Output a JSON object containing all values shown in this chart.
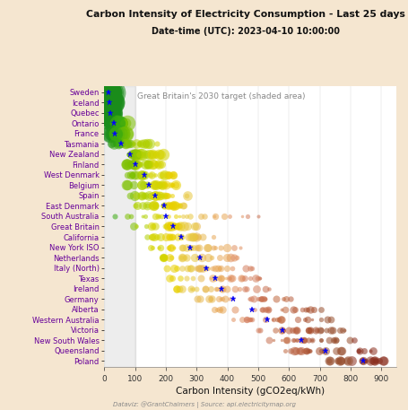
{
  "title": "Carbon Intensity of Electricity Consumption - Last 25 days",
  "subtitle": "Date-time (UTC): 2023-04-10 10:00:00",
  "xlabel": "Carbon Intensity (gCO2eq/kWh)",
  "footer": "Dataviz: @GrantChalmers | Source: api.electricitymap.org",
  "annotation": "Great Britain's 2030 target (shaded area)",
  "background_color": "#f5e6d0",
  "plot_background_color": "#ffffff",
  "countries": [
    "Sweden",
    "Iceland",
    "Quebec",
    "Ontario",
    "France",
    "Tasmania",
    "New Zealand",
    "Finland",
    "West Denmark",
    "Belgium",
    "Spain",
    "East Denmark",
    "South Australia",
    "Great Britain",
    "California",
    "New York ISO",
    "Netherlands",
    "Italy (North)",
    "Texas",
    "Ireland",
    "Germany",
    "Alberta",
    "Western Australia",
    "Victoria",
    "New South Wales",
    "Queensland",
    "Poland"
  ],
  "current_values": [
    13,
    18,
    20,
    30,
    35,
    55,
    85,
    100,
    130,
    145,
    165,
    195,
    200,
    225,
    250,
    280,
    310,
    330,
    360,
    380,
    420,
    480,
    530,
    580,
    640,
    720,
    840
  ],
  "spread_data": {
    "Sweden": {
      "min": 5,
      "max": 25,
      "current": 13,
      "n": 25
    },
    "Iceland": {
      "min": 3,
      "max": 28,
      "current": 18,
      "n": 25
    },
    "Quebec": {
      "min": 3,
      "max": 25,
      "current": 20,
      "n": 25
    },
    "Ontario": {
      "min": 5,
      "max": 80,
      "current": 30,
      "n": 25
    },
    "France": {
      "min": 15,
      "max": 75,
      "current": 35,
      "n": 25
    },
    "Tasmania": {
      "min": 10,
      "max": 180,
      "current": 55,
      "n": 25
    },
    "New Zealand": {
      "min": 55,
      "max": 200,
      "current": 85,
      "n": 25
    },
    "Finland": {
      "min": 50,
      "max": 210,
      "current": 100,
      "n": 25
    },
    "West Denmark": {
      "min": 55,
      "max": 260,
      "current": 130,
      "n": 25
    },
    "Belgium": {
      "min": 65,
      "max": 265,
      "current": 145,
      "n": 25
    },
    "Spain": {
      "min": 75,
      "max": 280,
      "current": 165,
      "n": 25
    },
    "East Denmark": {
      "min": 95,
      "max": 305,
      "current": 195,
      "n": 25
    },
    "South Australia": {
      "min": 5,
      "max": 520,
      "current": 200,
      "n": 25
    },
    "Great Britain": {
      "min": 90,
      "max": 310,
      "current": 225,
      "n": 25
    },
    "California": {
      "min": 120,
      "max": 375,
      "current": 250,
      "n": 25
    },
    "New York ISO": {
      "min": 140,
      "max": 450,
      "current": 280,
      "n": 25
    },
    "Netherlands": {
      "min": 170,
      "max": 460,
      "current": 310,
      "n": 25
    },
    "Italy (North)": {
      "min": 190,
      "max": 490,
      "current": 330,
      "n": 25
    },
    "Texas": {
      "min": 190,
      "max": 550,
      "current": 360,
      "n": 25
    },
    "Ireland": {
      "min": 210,
      "max": 570,
      "current": 380,
      "n": 25
    },
    "Germany": {
      "min": 260,
      "max": 630,
      "current": 420,
      "n": 25
    },
    "Alberta": {
      "min": 340,
      "max": 720,
      "current": 480,
      "n": 25
    },
    "Western Australia": {
      "min": 370,
      "max": 760,
      "current": 530,
      "n": 25
    },
    "Victoria": {
      "min": 430,
      "max": 800,
      "current": 580,
      "n": 25
    },
    "New South Wales": {
      "min": 460,
      "max": 840,
      "current": 640,
      "n": 25
    },
    "Queensland": {
      "min": 580,
      "max": 880,
      "current": 720,
      "n": 25
    },
    "Poland": {
      "min": 700,
      "max": 930,
      "current": 840,
      "n": 25
    }
  }
}
